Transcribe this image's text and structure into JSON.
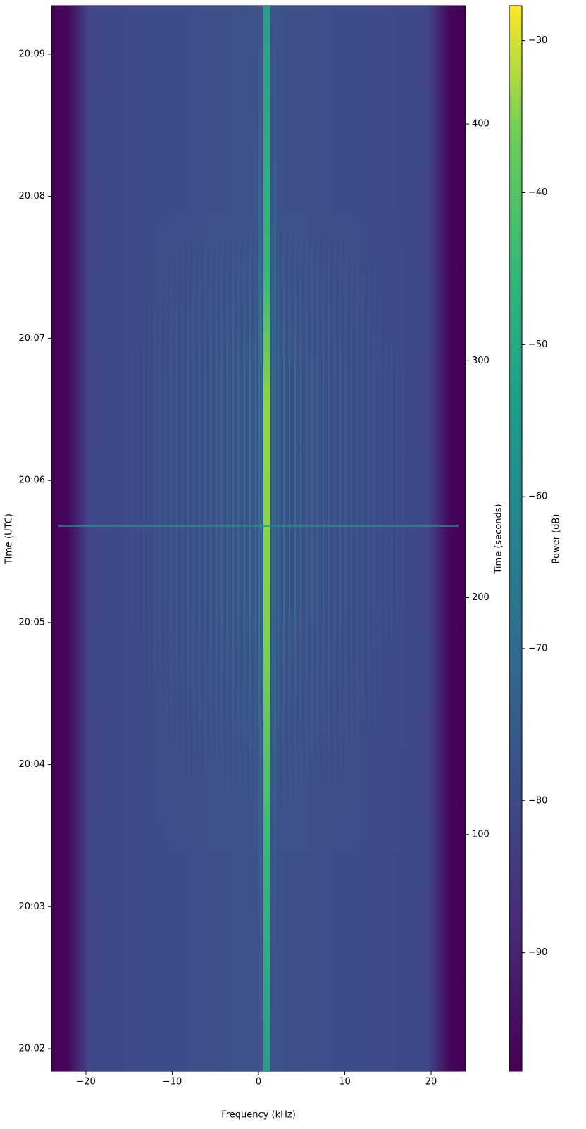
{
  "chart_data": {
    "type": "spectrogram",
    "xlabel": "Frequency (kHz)",
    "ylabel": "Time (UTC)",
    "y2label": "Time (seconds)",
    "colorbar_label": "Power (dB)",
    "colormap": "viridis",
    "xlim": [
      -24,
      24
    ],
    "xticks": [
      {
        "value": -20,
        "label": "−20"
      },
      {
        "value": -10,
        "label": "−10"
      },
      0,
      10,
      20
    ],
    "ylim": [
      0,
      450
    ],
    "yticks": [
      {
        "value": 9.5,
        "label": "20:02"
      },
      {
        "value": 69.5,
        "label": "20:03"
      },
      {
        "value": 129.5,
        "label": "20:04"
      },
      {
        "value": 189.5,
        "label": "20:05"
      },
      {
        "value": 249.5,
        "label": "20:06"
      },
      {
        "value": 309.5,
        "label": "20:07"
      },
      {
        "value": 369.5,
        "label": "20:08"
      },
      {
        "value": 429.5,
        "label": "20:09"
      }
    ],
    "y2lim": [
      0,
      450
    ],
    "y2ticks": [
      100,
      200,
      300,
      400
    ],
    "clim": [
      -97.8,
      -27.7
    ],
    "cticks": [
      {
        "value": -30,
        "label": "−30"
      },
      {
        "value": -40,
        "label": "−40"
      },
      {
        "value": -50,
        "label": "−50"
      },
      {
        "value": -60,
        "label": "−60"
      },
      {
        "value": -70,
        "label": "−70"
      },
      {
        "value": -80,
        "label": "−80"
      },
      {
        "value": -90,
        "label": "−90"
      }
    ]
  }
}
